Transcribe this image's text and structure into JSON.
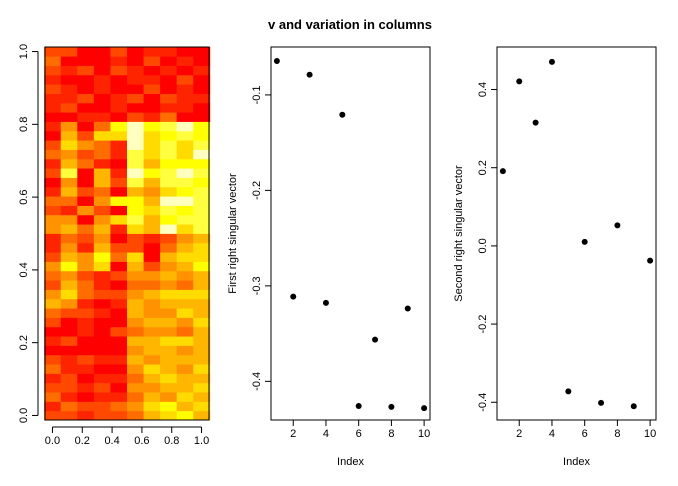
{
  "title": "v and variation in columns",
  "chart_data": [
    {
      "type": "heatmap",
      "title": "",
      "xlabel": "",
      "ylabel": "",
      "xlim": [
        -0.05,
        1.05
      ],
      "ylim": [
        -0.0125,
        1.0125
      ],
      "xticks": [
        "0.0",
        "0.2",
        "0.4",
        "0.6",
        "0.8",
        "1.0"
      ],
      "yticks": [
        "0.0",
        "0.2",
        "0.4",
        "0.6",
        "0.8",
        "1.0"
      ],
      "palette": [
        "#ff0000",
        "#ff2400",
        "#ff4900",
        "#ff6d00",
        "#ff9200",
        "#ffb600",
        "#ffdb00",
        "#ffff00",
        "#ffff40",
        "#ffffbf"
      ],
      "cols": 10,
      "rows": 40,
      "values": [
        [
          2,
          2,
          1,
          2,
          2,
          3,
          5,
          6,
          7,
          5
        ],
        [
          1,
          3,
          2,
          2,
          3,
          4,
          6,
          7,
          5,
          6
        ],
        [
          3,
          1,
          0,
          1,
          1,
          3,
          5,
          4,
          6,
          5
        ],
        [
          2,
          2,
          1,
          2,
          0,
          4,
          4,
          5,
          5,
          6
        ],
        [
          1,
          2,
          0,
          1,
          1,
          3,
          5,
          6,
          5,
          5
        ],
        [
          3,
          1,
          1,
          0,
          0,
          4,
          6,
          5,
          4,
          6
        ],
        [
          2,
          1,
          2,
          1,
          1,
          5,
          4,
          5,
          5,
          5
        ],
        [
          0,
          0,
          0,
          0,
          0,
          4,
          5,
          5,
          4,
          5
        ],
        [
          1,
          2,
          0,
          0,
          0,
          5,
          5,
          6,
          6,
          5
        ],
        [
          0,
          0,
          1,
          0,
          2,
          3,
          4,
          4,
          3,
          5
        ],
        [
          2,
          0,
          1,
          0,
          0,
          4,
          5,
          5,
          4,
          6
        ],
        [
          3,
          2,
          2,
          1,
          0,
          5,
          4,
          4,
          6,
          5
        ],
        [
          5,
          4,
          1,
          0,
          1,
          5,
          4,
          5,
          5,
          5
        ],
        [
          4,
          6,
          3,
          2,
          2,
          4,
          5,
          6,
          6,
          6
        ],
        [
          2,
          5,
          3,
          1,
          0,
          3,
          3,
          4,
          3,
          5
        ],
        [
          3,
          4,
          2,
          1,
          2,
          4,
          4,
          5,
          4,
          5
        ],
        [
          4,
          7,
          4,
          6,
          0,
          5,
          2,
          4,
          5,
          7
        ],
        [
          2,
          5,
          4,
          7,
          3,
          6,
          0,
          5,
          6,
          6
        ],
        [
          1,
          4,
          1,
          5,
          2,
          2,
          0,
          3,
          5,
          6
        ],
        [
          1,
          3,
          2,
          4,
          0,
          2,
          1,
          2,
          4,
          5
        ],
        [
          4,
          5,
          3,
          5,
          1,
          6,
          5,
          9,
          6,
          8
        ],
        [
          4,
          4,
          0,
          4,
          6,
          8,
          5,
          7,
          8,
          8
        ],
        [
          2,
          1,
          4,
          2,
          0,
          7,
          6,
          8,
          7,
          8
        ],
        [
          3,
          3,
          0,
          4,
          7,
          7,
          5,
          9,
          9,
          8
        ],
        [
          1,
          5,
          2,
          3,
          0,
          5,
          4,
          6,
          7,
          8
        ],
        [
          0,
          4,
          0,
          5,
          2,
          8,
          5,
          8,
          8,
          7
        ],
        [
          2,
          8,
          0,
          5,
          1,
          9,
          7,
          8,
          9,
          8
        ],
        [
          1,
          5,
          3,
          1,
          0,
          8,
          5,
          7,
          7,
          7
        ],
        [
          3,
          4,
          2,
          3,
          1,
          8,
          6,
          8,
          6,
          9
        ],
        [
          2,
          6,
          4,
          3,
          1,
          9,
          6,
          8,
          6,
          8
        ],
        [
          0,
          5,
          2,
          6,
          6,
          9,
          6,
          7,
          8,
          7
        ],
        [
          1,
          4,
          0,
          3,
          7,
          9,
          7,
          8,
          9,
          7
        ],
        [
          0,
          0,
          1,
          1,
          0,
          2,
          1,
          3,
          0,
          0
        ],
        [
          1,
          2,
          0,
          0,
          1,
          0,
          0,
          1,
          1,
          0
        ],
        [
          1,
          1,
          2,
          0,
          1,
          2,
          0,
          2,
          1,
          1
        ],
        [
          2,
          1,
          0,
          1,
          0,
          0,
          2,
          0,
          1,
          0
        ],
        [
          1,
          0,
          0,
          1,
          0,
          1,
          1,
          0,
          2,
          0
        ],
        [
          2,
          1,
          2,
          0,
          2,
          1,
          0,
          1,
          0,
          1
        ],
        [
          3,
          0,
          0,
          0,
          1,
          0,
          2,
          0,
          1,
          0
        ],
        [
          2,
          2,
          0,
          0,
          2,
          0,
          1,
          1,
          0,
          0
        ]
      ]
    },
    {
      "type": "scatter",
      "title": "",
      "xlabel": "Index",
      "ylabel": "First right singular vector",
      "xlim": [
        0.64,
        10.36
      ],
      "ylim": [
        -0.4405,
        -0.0498
      ],
      "xticks": [
        2,
        4,
        6,
        8,
        10
      ],
      "yticks": [
        -0.4,
        -0.3,
        -0.2,
        -0.1
      ],
      "x": [
        1,
        2,
        3,
        4,
        5,
        6,
        7,
        8,
        9,
        10
      ],
      "y": [
        -0.0645,
        -0.3113,
        -0.0788,
        -0.3178,
        -0.1208,
        -0.4258,
        -0.3563,
        -0.4267,
        -0.3237,
        -0.428
      ]
    },
    {
      "type": "scatter",
      "title": "",
      "xlabel": "Index",
      "ylabel": "Second right singular vector",
      "xlim": [
        0.64,
        10.36
      ],
      "ylim": [
        -0.4454,
        0.5088
      ],
      "xticks": [
        2,
        4,
        6,
        8,
        10
      ],
      "yticks": [
        -0.4,
        -0.2,
        0.0,
        0.2,
        0.4
      ],
      "ytick_labels": [
        "-0.4",
        "-0.2",
        "0.0",
        "0.2",
        "0.4"
      ],
      "x": [
        1,
        2,
        3,
        4,
        5,
        6,
        7,
        8,
        9,
        10
      ],
      "y": [
        0.1912,
        0.4209,
        0.3153,
        0.4706,
        -0.3721,
        0.0104,
        -0.4016,
        0.0526,
        -0.4102,
        -0.0377
      ]
    }
  ]
}
